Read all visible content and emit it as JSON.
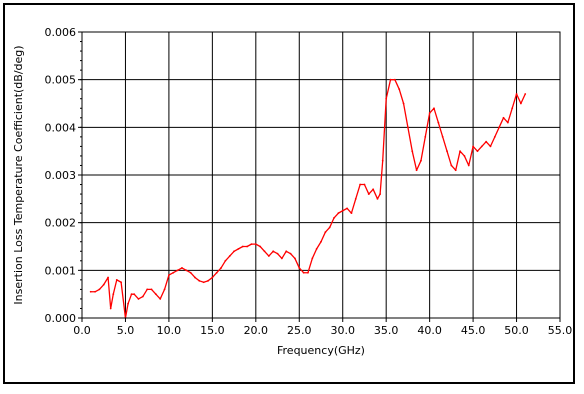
{
  "chart_data": {
    "type": "line",
    "title": "",
    "xlabel": "Frequency(GHz)",
    "ylabel": "Insertion Loss Temperature Coefficient(dB/deg)",
    "xlim": [
      0,
      55
    ],
    "ylim": [
      0,
      0.006
    ],
    "grid": true,
    "legend": "none",
    "x_ticks": [
      0,
      5,
      10,
      15,
      20,
      25,
      30,
      35,
      40,
      45,
      50,
      55
    ],
    "x_tick_labels": [
      "0.0",
      "5.0",
      "10.0",
      "15.0",
      "20.0",
      "25.0",
      "30.0",
      "35.0",
      "40.0",
      "45.0",
      "50.0",
      "55.0"
    ],
    "y_ticks": [
      0,
      0.001,
      0.002,
      0.003,
      0.004,
      0.005,
      0.006
    ],
    "y_tick_labels": [
      "0.000",
      "0.001",
      "0.002",
      "0.003",
      "0.004",
      "0.005",
      "0.006"
    ],
    "colors": {
      "series": "#ff0000",
      "grid": "#000000"
    },
    "series": [
      {
        "x": [
          1.0,
          1.5,
          2.0,
          2.5,
          3.0,
          3.3,
          3.6,
          4.0,
          4.5,
          5.0,
          5.3,
          5.7,
          6.0,
          6.5,
          7.0,
          7.5,
          8.0,
          8.5,
          9.0,
          9.5,
          10.0,
          10.5,
          11.0,
          11.5,
          12.0,
          12.5,
          13.0,
          13.5,
          14.0,
          14.5,
          15.0,
          15.5,
          16.0,
          16.5,
          17.0,
          17.5,
          18.0,
          18.5,
          19.0,
          19.5,
          20.0,
          20.5,
          21.0,
          21.5,
          22.0,
          22.5,
          23.0,
          23.5,
          24.0,
          24.5,
          25.0,
          25.5,
          26.0,
          26.5,
          27.0,
          27.5,
          28.0,
          28.5,
          29.0,
          29.5,
          30.0,
          30.5,
          31.0,
          31.5,
          32.0,
          32.5,
          33.0,
          33.5,
          34.0,
          34.3,
          34.6,
          35.0,
          35.5,
          36.0,
          36.5,
          37.0,
          37.5,
          38.0,
          38.5,
          39.0,
          39.5,
          40.0,
          40.5,
          41.0,
          41.5,
          42.0,
          42.5,
          43.0,
          43.5,
          44.0,
          44.5,
          45.0,
          45.5,
          46.0,
          46.5,
          47.0,
          47.5,
          48.0,
          48.5,
          49.0,
          49.5,
          50.0,
          50.5,
          51.0
        ],
        "y": [
          0.00055,
          0.00055,
          0.0006,
          0.0007,
          0.00085,
          0.0002,
          0.0005,
          0.0008,
          0.00075,
          0.0,
          0.0003,
          0.0005,
          0.0005,
          0.0004,
          0.00045,
          0.0006,
          0.0006,
          0.0005,
          0.0004,
          0.0006,
          0.0009,
          0.00095,
          0.001,
          0.00105,
          0.001,
          0.00095,
          0.00085,
          0.00078,
          0.00075,
          0.00078,
          0.00085,
          0.00095,
          0.00105,
          0.0012,
          0.0013,
          0.0014,
          0.00145,
          0.0015,
          0.0015,
          0.00155,
          0.00155,
          0.0015,
          0.0014,
          0.0013,
          0.0014,
          0.00135,
          0.00125,
          0.0014,
          0.00135,
          0.00125,
          0.00105,
          0.00095,
          0.00095,
          0.00125,
          0.00145,
          0.0016,
          0.0018,
          0.0019,
          0.0021,
          0.0022,
          0.00225,
          0.0023,
          0.0022,
          0.0025,
          0.0028,
          0.0028,
          0.0026,
          0.0027,
          0.0025,
          0.0026,
          0.0033,
          0.0046,
          0.005,
          0.005,
          0.0048,
          0.0045,
          0.004,
          0.0035,
          0.0031,
          0.0033,
          0.0038,
          0.0043,
          0.0044,
          0.0041,
          0.0038,
          0.0035,
          0.0032,
          0.0031,
          0.0035,
          0.0034,
          0.0032,
          0.0036,
          0.0035,
          0.0036,
          0.0037,
          0.0036,
          0.0038,
          0.004,
          0.0042,
          0.0041,
          0.0044,
          0.0047,
          0.0045,
          0.0047
        ]
      }
    ]
  }
}
